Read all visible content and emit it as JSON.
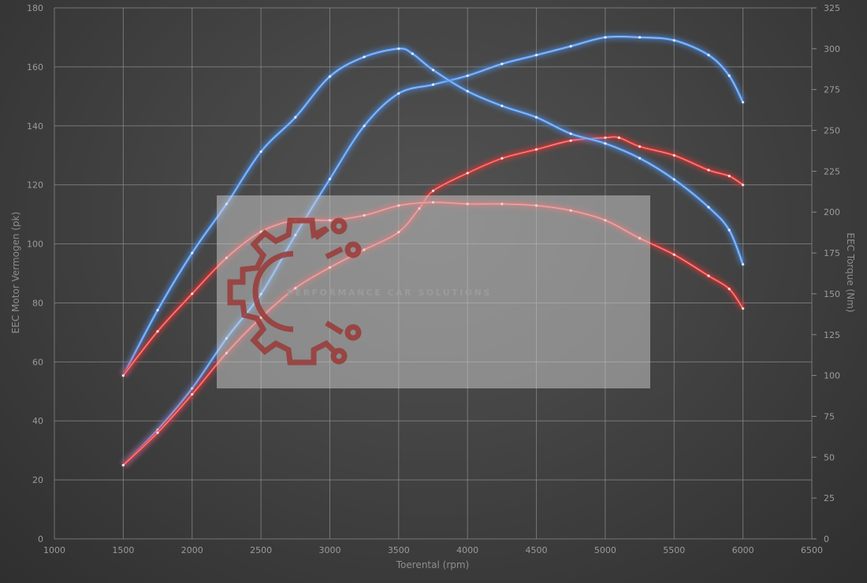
{
  "chart_data": {
    "type": "line",
    "xlabel": "Toerental (rpm)",
    "ylabel_left": "EEC Motor Vermogen (pk)",
    "ylabel_right": "EEC Torque (Nm)",
    "xlim": [
      1000,
      6500
    ],
    "xticks": [
      1000,
      1500,
      2000,
      2500,
      3000,
      3500,
      4000,
      4500,
      5000,
      5500,
      6000,
      6500
    ],
    "ylim_left": [
      0,
      180
    ],
    "yticks_left": [
      0,
      20,
      40,
      60,
      80,
      100,
      120,
      140,
      160,
      180
    ],
    "ylim_right": [
      0,
      325
    ],
    "yticks_right": [
      0,
      25,
      50,
      75,
      100,
      125,
      150,
      175,
      200,
      225,
      250,
      275,
      300,
      325
    ],
    "grid": true,
    "colors": {
      "tuned": "#4f90e8",
      "stock": "#e23838"
    },
    "series": [
      {
        "axis": "left",
        "color": "tuned",
        "x": [
          1500,
          1750,
          2000,
          2250,
          2500,
          2750,
          3000,
          3250,
          3500,
          3750,
          4000,
          4250,
          4500,
          4750,
          5000,
          5250,
          5500,
          5750,
          5900,
          6000
        ],
        "values": [
          25,
          37,
          51,
          68,
          83,
          103,
          122,
          140,
          151,
          154,
          157,
          161,
          164,
          167,
          170,
          170,
          169,
          164,
          157,
          148
        ]
      },
      {
        "axis": "left",
        "color": "stock",
        "x": [
          1500,
          1750,
          2000,
          2250,
          2500,
          2750,
          3000,
          3250,
          3500,
          3650,
          3750,
          4000,
          4250,
          4500,
          4750,
          5000,
          5100,
          5250,
          5500,
          5750,
          5900,
          6000
        ],
        "values": [
          25,
          36,
          49,
          63,
          75,
          85,
          92,
          98,
          104,
          112,
          118,
          124,
          129,
          132,
          135,
          136,
          136,
          133,
          130,
          125,
          123,
          120
        ]
      },
      {
        "axis": "right",
        "color": "tuned",
        "x": [
          1500,
          1750,
          2000,
          2250,
          2500,
          2750,
          3000,
          3250,
          3500,
          3600,
          3750,
          4000,
          4250,
          4500,
          4750,
          5000,
          5250,
          5500,
          5750,
          5900,
          6000
        ],
        "values": [
          100,
          140,
          175,
          205,
          237,
          258,
          283,
          295,
          300,
          297,
          287,
          274,
          265,
          258,
          248,
          242,
          233,
          220,
          203,
          189,
          168
        ]
      },
      {
        "axis": "right",
        "color": "stock",
        "x": [
          1500,
          1750,
          2000,
          2250,
          2500,
          2750,
          3000,
          3250,
          3500,
          3750,
          4000,
          4250,
          4500,
          4750,
          5000,
          5250,
          5500,
          5750,
          5900,
          6000
        ],
        "values": [
          100,
          127,
          150,
          172,
          188,
          195,
          195,
          198,
          204,
          206,
          205,
          205,
          204,
          201,
          195,
          184,
          174,
          161,
          153,
          141
        ]
      }
    ]
  },
  "watermark": {
    "text": "PERFORMANCE CAR SOLUTIONS"
  }
}
